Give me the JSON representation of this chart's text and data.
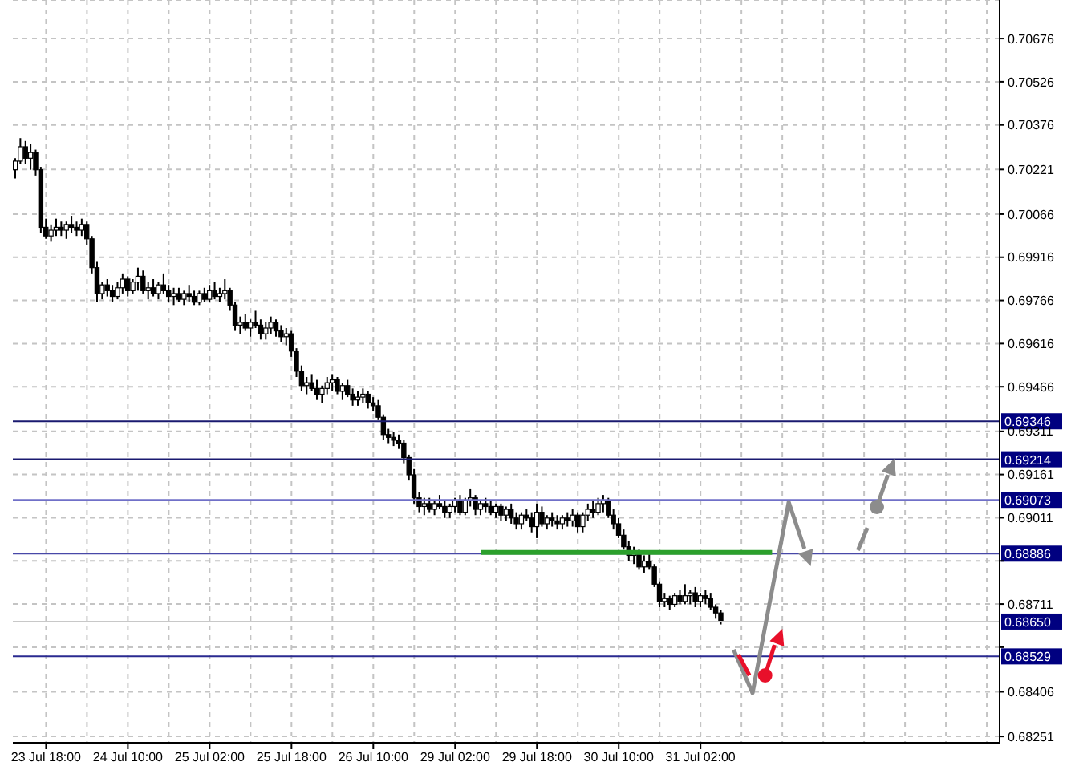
{
  "chart_data": {
    "type": "candlestick",
    "color": "#000000",
    "grid": true,
    "categories": [
      null,
      null,
      null,
      null,
      null,
      null,
      "23 Jul 18:00",
      null,
      null,
      null,
      null,
      null,
      null,
      null,
      null,
      null,
      null,
      null,
      null,
      null,
      null,
      null,
      "24 Jul 10:00",
      null,
      null,
      null,
      null,
      null,
      null,
      null,
      null,
      null,
      null,
      null,
      null,
      null,
      null,
      null,
      "25 Jul 02:00",
      null,
      null,
      null,
      null,
      null,
      null,
      null,
      null,
      null,
      null,
      null,
      null,
      null,
      null,
      null,
      "25 Jul 18:00",
      null,
      null,
      null,
      null,
      null,
      null,
      null,
      null,
      null,
      null,
      null,
      null,
      null,
      null,
      null,
      "26 Jul 10:00",
      null,
      null,
      null,
      null,
      null,
      null,
      null,
      null,
      null,
      null,
      null,
      null,
      null,
      null,
      null,
      "29 Jul 02:00",
      null,
      null,
      null,
      null,
      null,
      null,
      null,
      null,
      null,
      null,
      null,
      null,
      null,
      null,
      null,
      "29 Jul 18:00",
      null,
      null,
      null,
      null,
      null,
      null,
      null,
      null,
      null,
      null,
      null,
      null,
      null,
      null,
      null,
      "30 Jul 10:00",
      null,
      null,
      null,
      null,
      null,
      null,
      null,
      null,
      null,
      null,
      null,
      null,
      null,
      null,
      null,
      "31 Jul 02:00",
      null,
      null,
      null,
      null,
      null,
      null,
      null,
      null,
      null,
      null,
      null,
      null,
      null,
      null,
      null,
      null,
      null,
      null,
      null,
      null,
      null,
      null,
      null,
      null,
      null,
      null,
      null,
      null,
      null,
      null,
      null,
      null,
      null,
      null,
      null,
      null,
      null,
      null,
      null,
      null,
      null,
      null,
      null,
      null,
      null,
      null,
      null,
      null,
      null,
      null,
      null,
      null,
      null,
      null,
      null,
      null,
      null,
      null
    ],
    "ohlc": [
      [
        0.7022,
        0.7026,
        0.7019,
        0.7025
      ],
      [
        0.7025,
        0.7033,
        0.7024,
        0.703
      ],
      [
        0.703,
        0.7032,
        0.7024,
        0.7026
      ],
      [
        0.7026,
        0.7031,
        0.7022,
        0.7028
      ],
      [
        0.7028,
        0.7029,
        0.702,
        0.7022
      ],
      [
        0.7022,
        0.7023,
        0.7,
        0.7002
      ],
      [
        0.7002,
        0.7005,
        0.6998,
        0.6999
      ],
      [
        0.6999,
        0.7003,
        0.6997,
        0.7001
      ],
      [
        0.7001,
        0.7005,
        0.6999,
        0.7002
      ],
      [
        0.7002,
        0.7004,
        0.6999,
        0.7001
      ],
      [
        0.7001,
        0.7004,
        0.6998,
        0.7003
      ],
      [
        0.7003,
        0.7006,
        0.7,
        0.7002
      ],
      [
        0.7002,
        0.7004,
        0.6999,
        0.7001
      ],
      [
        0.7001,
        0.7005,
        0.6999,
        0.7003
      ],
      [
        0.7003,
        0.7004,
        0.6996,
        0.6998
      ],
      [
        0.6998,
        0.6999,
        0.6986,
        0.6988
      ],
      [
        0.6988,
        0.699,
        0.6976,
        0.6979
      ],
      [
        0.6979,
        0.6983,
        0.6977,
        0.6982
      ],
      [
        0.6982,
        0.6984,
        0.6978,
        0.698
      ],
      [
        0.698,
        0.6982,
        0.6976,
        0.6978
      ],
      [
        0.6978,
        0.6983,
        0.6977,
        0.6981
      ],
      [
        0.6981,
        0.6986,
        0.6979,
        0.6984
      ],
      [
        0.6984,
        0.6985,
        0.6978,
        0.698
      ],
      [
        0.698,
        0.6984,
        0.6979,
        0.6983
      ],
      [
        0.6983,
        0.6988,
        0.698,
        0.6985
      ],
      [
        0.6985,
        0.6987,
        0.6979,
        0.698
      ],
      [
        0.698,
        0.6983,
        0.6977,
        0.6981
      ],
      [
        0.6981,
        0.6984,
        0.6978,
        0.6979
      ],
      [
        0.6979,
        0.6983,
        0.6977,
        0.6982
      ],
      [
        0.6982,
        0.6986,
        0.6979,
        0.698
      ],
      [
        0.698,
        0.6982,
        0.6976,
        0.6978
      ],
      [
        0.6978,
        0.6981,
        0.6975,
        0.6979
      ],
      [
        0.6979,
        0.6981,
        0.6976,
        0.6977
      ],
      [
        0.6977,
        0.698,
        0.6975,
        0.6979
      ],
      [
        0.6979,
        0.6982,
        0.6976,
        0.6978
      ],
      [
        0.6978,
        0.698,
        0.6975,
        0.6976
      ],
      [
        0.6976,
        0.698,
        0.6975,
        0.6979
      ],
      [
        0.6979,
        0.6981,
        0.6976,
        0.6977
      ],
      [
        0.6977,
        0.6982,
        0.6976,
        0.698
      ],
      [
        0.698,
        0.6983,
        0.6977,
        0.6978
      ],
      [
        0.6978,
        0.6981,
        0.6976,
        0.6979
      ],
      [
        0.6979,
        0.6984,
        0.6977,
        0.698
      ],
      [
        0.698,
        0.6981,
        0.6973,
        0.6975
      ],
      [
        0.6975,
        0.6976,
        0.6966,
        0.6968
      ],
      [
        0.6968,
        0.6971,
        0.6965,
        0.6969
      ],
      [
        0.6969,
        0.6972,
        0.6966,
        0.6967
      ],
      [
        0.6967,
        0.697,
        0.6964,
        0.6969
      ],
      [
        0.6969,
        0.6973,
        0.6967,
        0.6968
      ],
      [
        0.6968,
        0.697,
        0.6963,
        0.6965
      ],
      [
        0.6965,
        0.6969,
        0.6963,
        0.6967
      ],
      [
        0.6967,
        0.6971,
        0.6965,
        0.6969
      ],
      [
        0.6969,
        0.697,
        0.6964,
        0.6966
      ],
      [
        0.6966,
        0.6968,
        0.6962,
        0.6964
      ],
      [
        0.6964,
        0.6967,
        0.6961,
        0.6965
      ],
      [
        0.6965,
        0.6966,
        0.6957,
        0.6959
      ],
      [
        0.6959,
        0.696,
        0.695,
        0.6952
      ],
      [
        0.6952,
        0.6954,
        0.6945,
        0.6947
      ],
      [
        0.6947,
        0.695,
        0.6944,
        0.6948
      ],
      [
        0.6948,
        0.6951,
        0.6945,
        0.6946
      ],
      [
        0.6946,
        0.6949,
        0.6942,
        0.6944
      ],
      [
        0.6944,
        0.6947,
        0.6941,
        0.6946
      ],
      [
        0.6946,
        0.695,
        0.6944,
        0.6948
      ],
      [
        0.6948,
        0.6951,
        0.6945,
        0.6949
      ],
      [
        0.6949,
        0.695,
        0.6944,
        0.6945
      ],
      [
        0.6945,
        0.6948,
        0.6942,
        0.6947
      ],
      [
        0.6947,
        0.6949,
        0.6943,
        0.6944
      ],
      [
        0.6944,
        0.6946,
        0.694,
        0.6942
      ],
      [
        0.6942,
        0.6945,
        0.694,
        0.6943
      ],
      [
        0.6943,
        0.6946,
        0.6941,
        0.6944
      ],
      [
        0.6944,
        0.6945,
        0.6939,
        0.6941
      ],
      [
        0.6941,
        0.6943,
        0.6938,
        0.694
      ],
      [
        0.694,
        0.6942,
        0.6935,
        0.6936
      ],
      [
        0.6936,
        0.6937,
        0.6928,
        0.693
      ],
      [
        0.693,
        0.6932,
        0.6927,
        0.6929
      ],
      [
        0.6929,
        0.6931,
        0.6926,
        0.6928
      ],
      [
        0.6928,
        0.693,
        0.6925,
        0.6927
      ],
      [
        0.6927,
        0.6928,
        0.692,
        0.6922
      ],
      [
        0.6922,
        0.6923,
        0.6914,
        0.6916
      ],
      [
        0.6916,
        0.6918,
        0.6906,
        0.6908
      ],
      [
        0.6908,
        0.691,
        0.6903,
        0.6905
      ],
      [
        0.6905,
        0.6908,
        0.6902,
        0.6906
      ],
      [
        0.6906,
        0.6908,
        0.6903,
        0.6904
      ],
      [
        0.6904,
        0.6907,
        0.6902,
        0.6906
      ],
      [
        0.6906,
        0.6909,
        0.6904,
        0.6905
      ],
      [
        0.6905,
        0.6907,
        0.6901,
        0.6903
      ],
      [
        0.6903,
        0.6906,
        0.6901,
        0.6905
      ],
      [
        0.6905,
        0.6908,
        0.6903,
        0.6907
      ],
      [
        0.6907,
        0.6909,
        0.6902,
        0.6903
      ],
      [
        0.6903,
        0.6908,
        0.6902,
        0.6907
      ],
      [
        0.6907,
        0.6911,
        0.6905,
        0.6908
      ],
      [
        0.6908,
        0.6909,
        0.6902,
        0.6904
      ],
      [
        0.6904,
        0.6907,
        0.6902,
        0.6906
      ],
      [
        0.6906,
        0.6908,
        0.6903,
        0.6905
      ],
      [
        0.6905,
        0.6907,
        0.6902,
        0.6903
      ],
      [
        0.6903,
        0.6906,
        0.6901,
        0.6905
      ],
      [
        0.6905,
        0.6906,
        0.69,
        0.6902
      ],
      [
        0.6902,
        0.6905,
        0.69,
        0.6904
      ],
      [
        0.6904,
        0.6906,
        0.6899,
        0.6901
      ],
      [
        0.6901,
        0.6903,
        0.6897,
        0.6899
      ],
      [
        0.6899,
        0.6903,
        0.6897,
        0.6902
      ],
      [
        0.6902,
        0.6904,
        0.69,
        0.6901
      ],
      [
        0.6901,
        0.6903,
        0.6896,
        0.6898
      ],
      [
        0.6898,
        0.6906,
        0.6894,
        0.6903
      ],
      [
        0.6903,
        0.6905,
        0.6898,
        0.6899
      ],
      [
        0.6899,
        0.6902,
        0.6897,
        0.6901
      ],
      [
        0.6901,
        0.6903,
        0.6898,
        0.69
      ],
      [
        0.69,
        0.6902,
        0.6897,
        0.6899
      ],
      [
        0.6899,
        0.6902,
        0.6897,
        0.6901
      ],
      [
        0.6901,
        0.6903,
        0.6898,
        0.69
      ],
      [
        0.69,
        0.6904,
        0.6898,
        0.6902
      ],
      [
        0.6902,
        0.6903,
        0.6896,
        0.6898
      ],
      [
        0.6898,
        0.6903,
        0.6896,
        0.6902
      ],
      [
        0.6902,
        0.6906,
        0.69,
        0.6904
      ],
      [
        0.6904,
        0.6907,
        0.6901,
        0.6903
      ],
      [
        0.6903,
        0.6908,
        0.6902,
        0.6906
      ],
      [
        0.6906,
        0.6909,
        0.6903,
        0.6907
      ],
      [
        0.6907,
        0.6908,
        0.6901,
        0.6902
      ],
      [
        0.6902,
        0.6904,
        0.6897,
        0.6899
      ],
      [
        0.6899,
        0.6901,
        0.6894,
        0.6895
      ],
      [
        0.6895,
        0.6897,
        0.689,
        0.6891
      ],
      [
        0.6891,
        0.6893,
        0.6886,
        0.6888
      ],
      [
        0.6888,
        0.6891,
        0.6885,
        0.6889
      ],
      [
        0.6889,
        0.689,
        0.6883,
        0.6884
      ],
      [
        0.6884,
        0.6888,
        0.6882,
        0.6886
      ],
      [
        0.6886,
        0.6889,
        0.6883,
        0.6884
      ],
      [
        0.6884,
        0.6885,
        0.6877,
        0.6878
      ],
      [
        0.6878,
        0.6879,
        0.687,
        0.6872
      ],
      [
        0.6872,
        0.6875,
        0.687,
        0.6873
      ],
      [
        0.6873,
        0.6874,
        0.6869,
        0.6871
      ],
      [
        0.6871,
        0.6875,
        0.687,
        0.6874
      ],
      [
        0.6874,
        0.6876,
        0.6871,
        0.6872
      ],
      [
        0.6872,
        0.6878,
        0.6871,
        0.6874
      ],
      [
        0.6874,
        0.6876,
        0.6871,
        0.6875
      ],
      [
        0.6875,
        0.6877,
        0.687,
        0.6872
      ],
      [
        0.6872,
        0.6875,
        0.687,
        0.6874
      ],
      [
        0.6874,
        0.6876,
        0.6871,
        0.6873
      ],
      [
        0.6873,
        0.6875,
        0.6869,
        0.687
      ],
      [
        0.687,
        0.6871,
        0.6866,
        0.6868
      ],
      [
        0.6868,
        0.6869,
        0.6864,
        0.6865
      ],
      null,
      null,
      null,
      null,
      null,
      null,
      null,
      null,
      null,
      null,
      null,
      null,
      null,
      null,
      null,
      null,
      null,
      null,
      null,
      null,
      null,
      null,
      null,
      null,
      null,
      null,
      null,
      null,
      null,
      null,
      null,
      null,
      null,
      null,
      null,
      null,
      null,
      null,
      null,
      null,
      null,
      null,
      null,
      null,
      null,
      null,
      null,
      null,
      null,
      null,
      null,
      null,
      null,
      null
    ],
    "series": [
      {
        "type": "line",
        "color": "#2ca02c",
        "values": [
          null,
          null,
          null,
          null,
          null,
          null,
          null,
          null,
          null,
          null,
          null,
          null,
          null,
          null,
          null,
          null,
          null,
          null,
          null,
          null,
          null,
          null,
          null,
          null,
          null,
          null,
          null,
          null,
          null,
          null,
          null,
          null,
          null,
          null,
          null,
          null,
          null,
          null,
          null,
          null,
          null,
          null,
          null,
          null,
          null,
          null,
          null,
          null,
          null,
          null,
          null,
          null,
          null,
          null,
          null,
          null,
          null,
          null,
          null,
          null,
          null,
          null,
          null,
          null,
          null,
          null,
          null,
          null,
          null,
          null,
          null,
          null,
          null,
          null,
          null,
          null,
          null,
          null,
          null,
          null,
          null,
          null,
          null,
          null,
          null,
          null,
          null,
          null,
          null,
          null,
          null,
          0.6889,
          0.6889,
          0.6889,
          0.6889,
          0.6889,
          0.6889,
          0.6889,
          0.6889,
          0.6889,
          0.6889,
          0.6889,
          0.6889,
          0.6889,
          0.6889,
          0.6889,
          0.6889,
          0.6889,
          0.6889,
          0.6889,
          0.6889,
          0.6889,
          0.6889,
          0.6889,
          0.6889,
          0.6889,
          0.6889,
          0.6889,
          0.6889,
          0.6889,
          0.6889,
          0.6889,
          0.6889,
          0.6889,
          0.6889,
          0.6889,
          0.6889,
          0.6889,
          0.6889,
          0.6889,
          0.6889,
          0.6889,
          0.6889,
          0.6889,
          0.6889,
          0.6889,
          0.6889,
          0.6889,
          0.6889,
          0.6889,
          0.6889,
          0.6889,
          0.6889,
          0.6889,
          0.6889,
          0.6889,
          0.6889,
          0.6889,
          0.6889,
          null,
          null,
          null,
          null,
          null,
          null,
          null,
          null,
          null,
          null,
          null,
          null,
          null,
          null,
          null,
          null,
          null,
          null,
          null,
          null,
          null,
          null,
          null,
          null,
          null,
          null,
          null,
          null,
          null,
          null,
          null,
          null,
          null,
          null,
          null,
          null,
          null,
          null,
          null,
          null,
          null,
          null,
          null,
          null
        ]
      }
    ],
    "ylim": [
      0.68229,
      0.7081
    ],
    "yticks": [
      0.68251,
      0.68406,
      {
        "value": 0.68561,
        "label": null
      },
      0.68711,
      {
        "value": 0.68861,
        "label": null
      },
      0.69011,
      0.69161,
      0.69311,
      0.69466,
      0.69616,
      0.69766,
      0.69916,
      0.70066,
      0.70221,
      0.70376,
      0.70526,
      0.70676
    ],
    "ref_lines": [
      {
        "axis": "y",
        "value": 0.69346,
        "label": "0.69346",
        "color": "#1a1a70"
      },
      {
        "axis": "y",
        "value": 0.69214,
        "label": "0.69214",
        "color": "#1a1a70"
      },
      {
        "axis": "y",
        "value": 0.69073,
        "label": "0.69073",
        "color": "#7070c8"
      },
      {
        "axis": "y",
        "value": 0.68886,
        "label": "0.68886",
        "color": "#4848a8"
      },
      {
        "axis": "y",
        "value": 0.6865,
        "label": "0.68650",
        "color": "#c8c8c8"
      },
      {
        "axis": "y",
        "value": 0.68529,
        "label": "0.68529",
        "color": "#2a2a90"
      }
    ]
  }
}
